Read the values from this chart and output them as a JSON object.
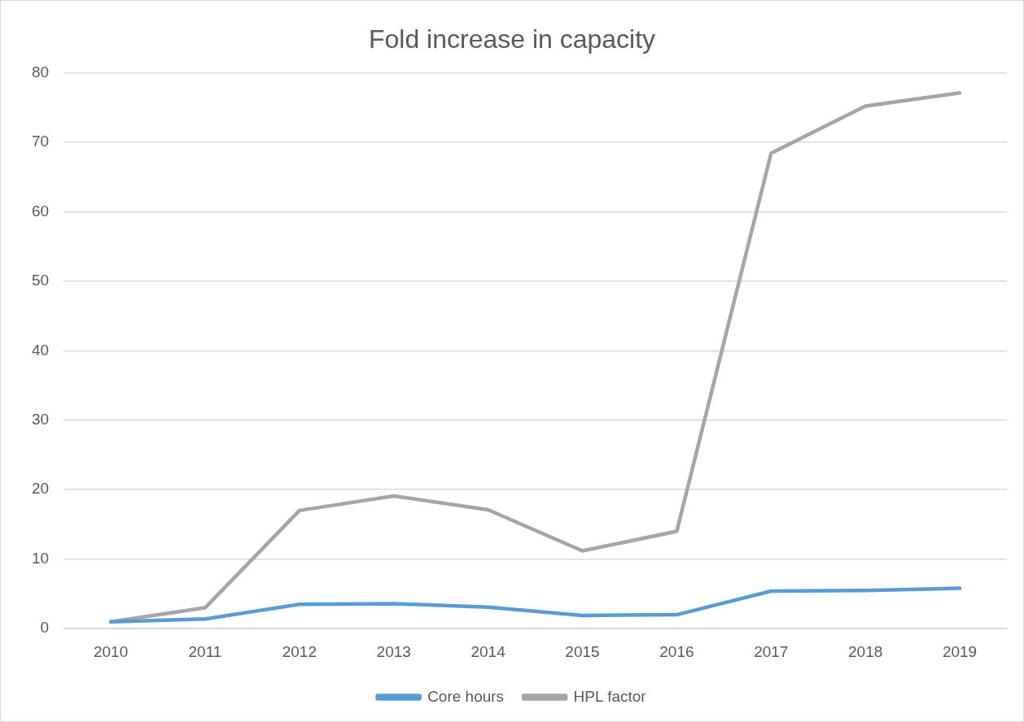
{
  "chart_data": {
    "type": "line",
    "title": "Fold increase in capacity",
    "categories": [
      "2010",
      "2011",
      "2012",
      "2013",
      "2014",
      "2015",
      "2016",
      "2017",
      "2018",
      "2019"
    ],
    "series": [
      {
        "name": "Core hours",
        "color": "#5b9bd5",
        "values": [
          1,
          1.4,
          3.5,
          3.6,
          3.1,
          1.9,
          2.0,
          5.4,
          5.5,
          5.8
        ]
      },
      {
        "name": "HPL factor",
        "color": "#a5a5a5",
        "values": [
          1,
          3.0,
          17.0,
          19.1,
          17.1,
          11.2,
          14.0,
          68.4,
          75.2,
          77.1
        ]
      }
    ],
    "ylim": [
      0,
      80
    ],
    "yticks": [
      0,
      10,
      20,
      30,
      40,
      50,
      60,
      70,
      80
    ],
    "grid": "y",
    "legend": "bottom",
    "marker": "none",
    "line_style": "solid"
  }
}
